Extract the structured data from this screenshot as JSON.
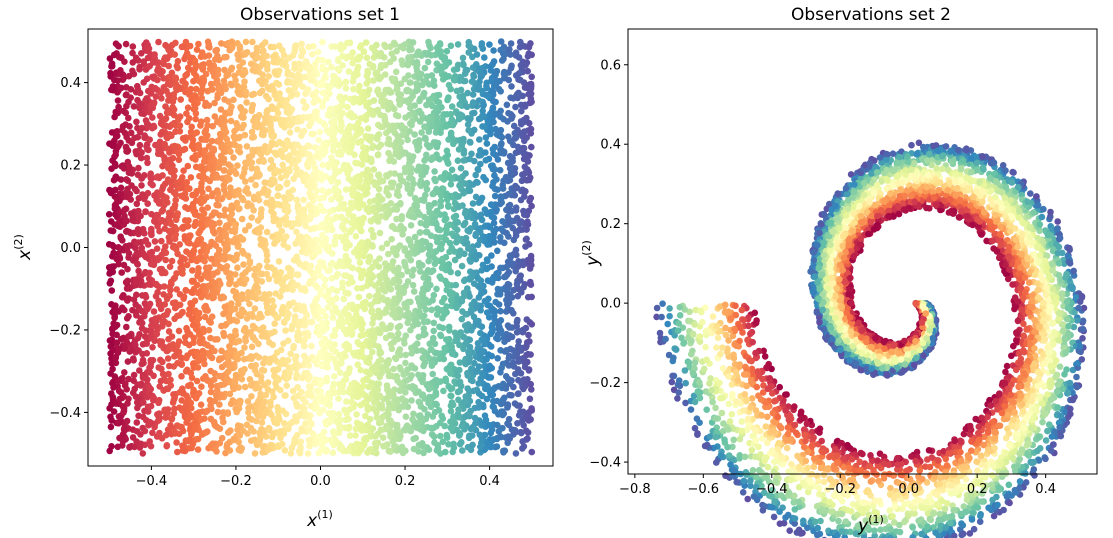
{
  "colormap": [
    "#9e0142",
    "#d53e4f",
    "#f46d43",
    "#fdae61",
    "#fee08b",
    "#ffffbf",
    "#e6f598",
    "#abdda4",
    "#66c2a5",
    "#3288bd",
    "#5e4fa2"
  ],
  "chart_data": [
    {
      "type": "scatter",
      "title": "Observations set 1",
      "xlabel": {
        "base": "x",
        "sup": "(1)"
      },
      "ylabel": {
        "base": "x",
        "sup": "(2)"
      },
      "xlim": [
        -0.55,
        0.55
      ],
      "ylim": [
        -0.53,
        0.53
      ],
      "xticks": [
        -0.4,
        -0.2,
        0.0,
        0.2,
        0.4
      ],
      "xtick_labels": [
        "−0.4",
        "−0.2",
        "0.0",
        "0.2",
        "0.4"
      ],
      "yticks": [
        -0.4,
        -0.2,
        0.0,
        0.2,
        0.4
      ],
      "yticks_labels": [
        "−0.4",
        "−0.2",
        "0.0",
        "0.2",
        "0.4"
      ],
      "distribution": "uniform square x in [-0.5, 0.5], y in [-0.5, 0.5], colored by a value increasing from x = -0.5 (dark red) to x = 0.5 (dark blue)",
      "point_count": 6000,
      "grid": false
    },
    {
      "type": "scatter",
      "title": "Observations set 2",
      "xlabel": {
        "base": "y",
        "sup": "(1)"
      },
      "ylabel": {
        "base": "y",
        "sup": "(2)"
      },
      "xlim": [
        -0.82,
        0.55
      ],
      "ylim": [
        -0.43,
        0.69
      ],
      "xticks": [
        -0.8,
        -0.6,
        -0.4,
        -0.2,
        0.0,
        0.2,
        0.4
      ],
      "xtick_labels": [
        "−0.8",
        "−0.6",
        "−0.4",
        "−0.2",
        "0.0",
        "0.2",
        "0.4"
      ],
      "yticks": [
        -0.4,
        -0.2,
        0.0,
        0.2,
        0.4,
        0.6
      ],
      "yticks_labels": [
        "−0.4",
        "−0.2",
        "0.0",
        "0.2",
        "0.4",
        "0.6"
      ],
      "distribution": "spiral band (same points as set 1 mapped through a swirl): angle sweeps from 0 to -1.5 turns, radius grows from about 0.02 to 0.58; inner edge colored dark red, outer edge colored dark blue",
      "point_count": 6000,
      "grid": false
    }
  ]
}
